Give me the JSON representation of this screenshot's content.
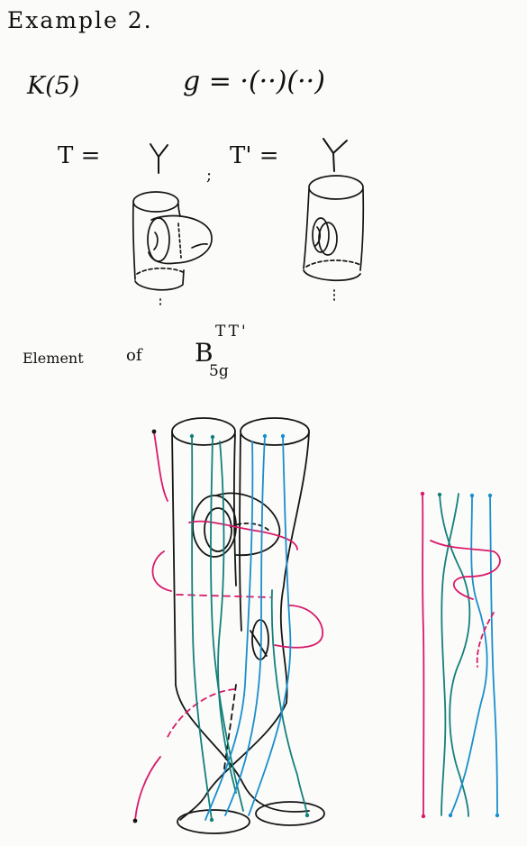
{
  "title": "Example 2.",
  "k_label": "K(5)",
  "g_definition": "g = ·(··)(··)",
  "t_label": "T =",
  "t_prime_label": "T' =",
  "separator": ";",
  "element_label": "Element",
  "of_word": "of",
  "b_symbol": "B",
  "b_subscript": "5g",
  "b_superscript": "TT'",
  "colors": {
    "ink": "#151515",
    "pink": "#d81b6a",
    "teal": "#13807a",
    "blue": "#1a8fcc"
  }
}
